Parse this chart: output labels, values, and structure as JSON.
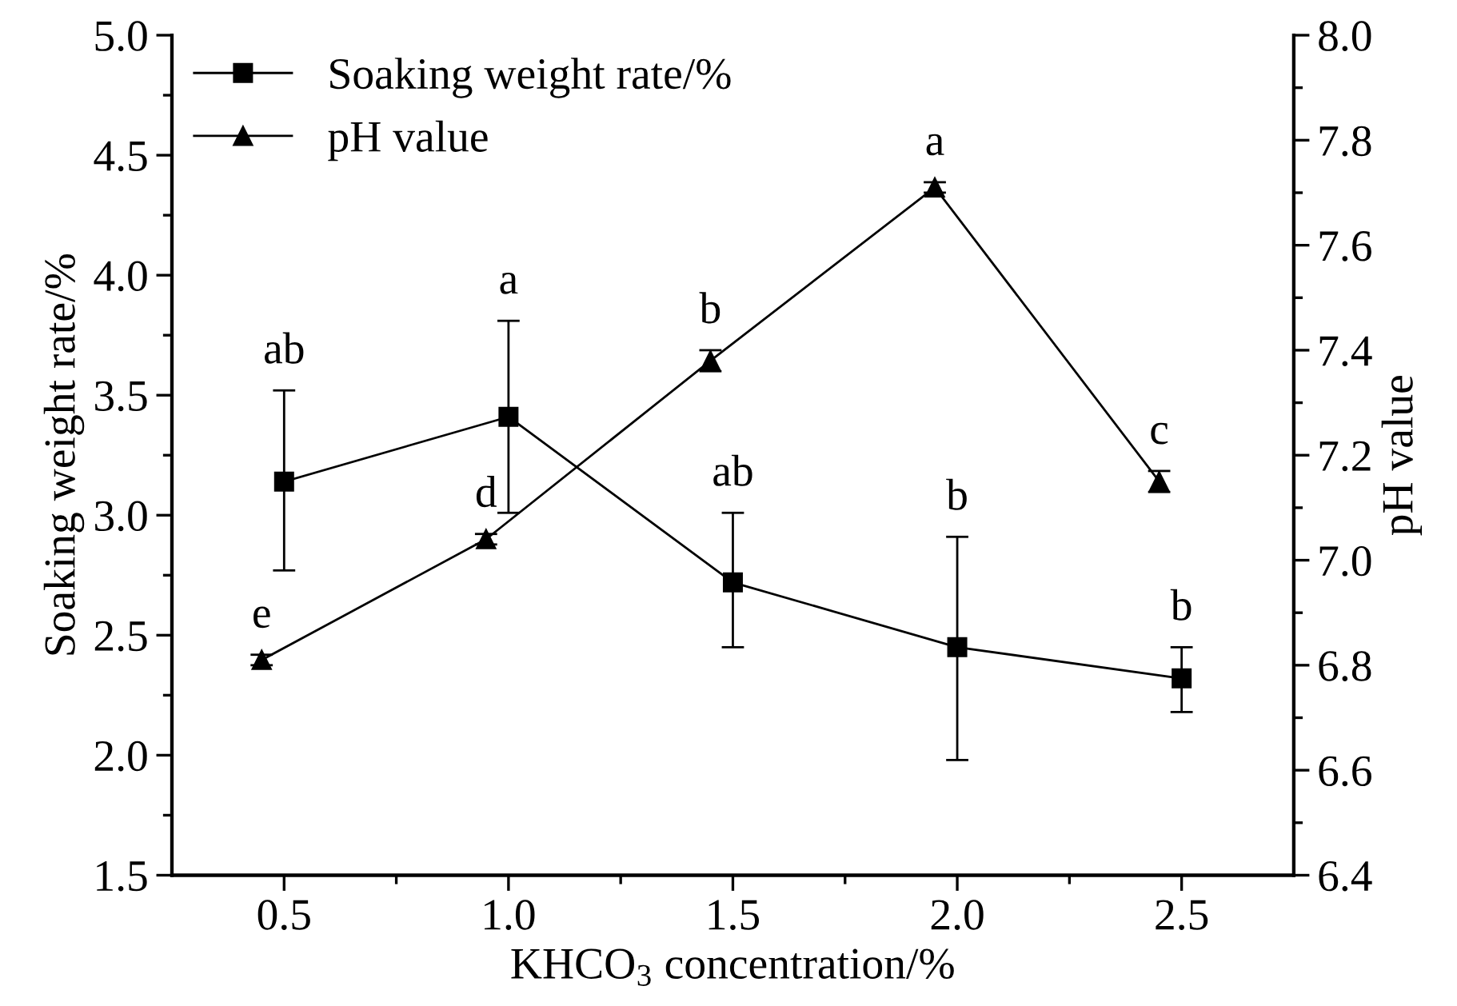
{
  "chart_data": {
    "type": "line",
    "xlabel": "KHCO$_{3}$ concentration/%",
    "ylabel": "Soaking weight rate/%",
    "y2label": "pH value",
    "xlim": [
      0.25,
      2.75
    ],
    "ylim": [
      1.5,
      5.0
    ],
    "y2lim": [
      6.4,
      8.0
    ],
    "xticks": [
      {
        "value": 0.5,
        "label": "0.5"
      },
      {
        "value": 0.75,
        "label": null
      },
      {
        "value": 1.0,
        "label": "1.0"
      },
      {
        "value": 1.25,
        "label": null
      },
      {
        "value": 1.5,
        "label": "1.5"
      },
      {
        "value": 1.75,
        "label": null
      },
      {
        "value": 2.0,
        "label": "2.0"
      },
      {
        "value": 2.25,
        "label": null
      },
      {
        "value": 2.5,
        "label": "2.5"
      }
    ],
    "yticks": [
      {
        "value": 1.5,
        "label": "1.5"
      },
      {
        "value": 1.75,
        "label": null
      },
      {
        "value": 2.0,
        "label": "2.0"
      },
      {
        "value": 2.25,
        "label": null
      },
      {
        "value": 2.5,
        "label": "2.5"
      },
      {
        "value": 2.75,
        "label": null
      },
      {
        "value": 3.0,
        "label": "3.0"
      },
      {
        "value": 3.25,
        "label": null
      },
      {
        "value": 3.5,
        "label": "3.5"
      },
      {
        "value": 3.75,
        "label": null
      },
      {
        "value": 4.0,
        "label": "4.0"
      },
      {
        "value": 4.25,
        "label": null
      },
      {
        "value": 4.5,
        "label": "4.5"
      },
      {
        "value": 4.75,
        "label": null
      },
      {
        "value": 5.0,
        "label": "5.0"
      }
    ],
    "y2ticks": [
      6.4,
      {
        "value": 6.5,
        "label": null
      },
      6.6,
      {
        "value": 6.7,
        "label": null
      },
      6.8,
      {
        "value": 6.9,
        "label": null
      },
      {
        "value": 7.0,
        "label": "7.0"
      },
      {
        "value": 7.1,
        "label": null
      },
      7.2,
      {
        "value": 7.3,
        "label": null
      },
      7.4,
      {
        "value": 7.5,
        "label": null
      },
      7.6,
      {
        "value": 7.7,
        "label": null
      },
      7.8,
      {
        "value": 7.9,
        "label": null
      },
      {
        "value": 8.0,
        "label": "8.0"
      }
    ],
    "series": [
      {
        "name": "Soaking weight rate/%",
        "color": "#000000",
        "marker": "square",
        "x": [
          0.5,
          1.0,
          1.5,
          2.0,
          2.5
        ],
        "values": [
          3.14,
          3.41,
          2.72,
          2.45,
          2.32
        ],
        "errors": [
          [
            2.77,
            3.52
          ],
          [
            3.01,
            3.81
          ],
          [
            2.45,
            3.01
          ],
          [
            1.98,
            2.91
          ],
          [
            2.18,
            2.45
          ]
        ],
        "value_labels": [
          "ab",
          "a",
          "ab",
          "b",
          "b"
        ]
      },
      {
        "name": "pH value",
        "color": "#000000",
        "marker": "triangle",
        "axis": "y2",
        "x": [
          0.45,
          0.95,
          1.45,
          1.95,
          2.45
        ],
        "values": [
          6.81,
          7.04,
          7.38,
          7.71,
          7.15
        ],
        "errors": [
          0.01,
          0.01,
          0.02,
          0.01,
          0.02
        ],
        "value_labels": [
          "e",
          "d",
          "b",
          "a",
          "c"
        ]
      }
    ],
    "legend": "top left",
    "grid": false,
    "line_style": "solid"
  }
}
